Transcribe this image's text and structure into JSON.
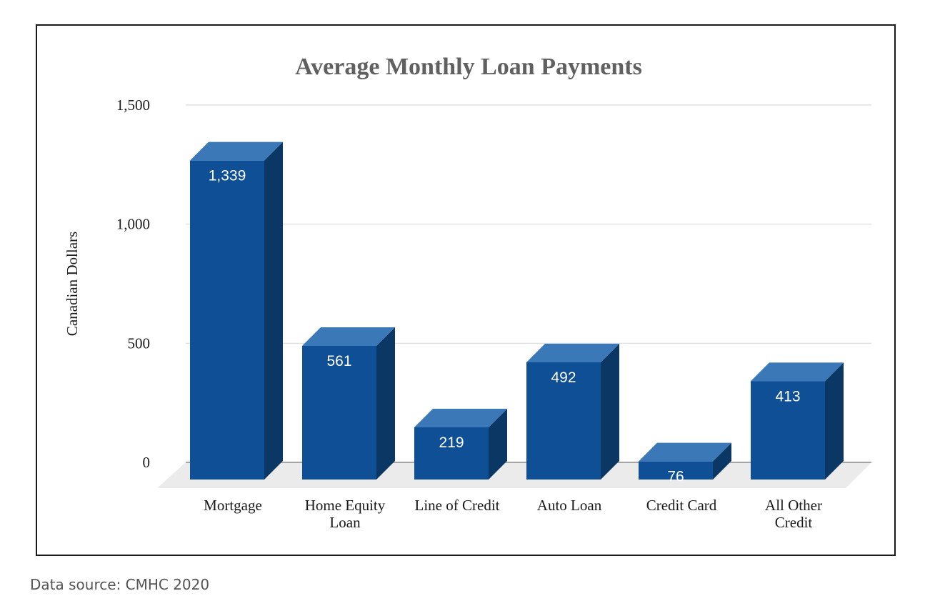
{
  "chart_data": {
    "type": "bar",
    "title": "Average Monthly Loan Payments",
    "ylabel": "Canadian Dollars",
    "xlabel": "",
    "categories": [
      [
        "Mortgage"
      ],
      [
        "Home Equity",
        "Loan"
      ],
      [
        "Line of Credit"
      ],
      [
        "Auto Loan"
      ],
      [
        "Credit Card"
      ],
      [
        "All Other",
        "Credit"
      ]
    ],
    "values": [
      1339,
      561,
      219,
      492,
      76,
      413
    ],
    "value_labels": [
      "1,339",
      "561",
      "219",
      "492",
      "76",
      "413"
    ],
    "y_ticks": [
      0,
      500,
      1000,
      1500
    ],
    "y_tick_labels": [
      "0",
      "500",
      "1,000",
      "1,500"
    ],
    "ylim": [
      0,
      1500
    ],
    "grid": true,
    "legend": "none",
    "colors": {
      "bar_front": "#0e4f96",
      "bar_top": "#3a78b8",
      "bar_side": "#0a3763",
      "grid": "#d9d9d9",
      "floor": "#ebebeb"
    }
  },
  "footer": {
    "source": "Data source: CMHC 2020"
  }
}
